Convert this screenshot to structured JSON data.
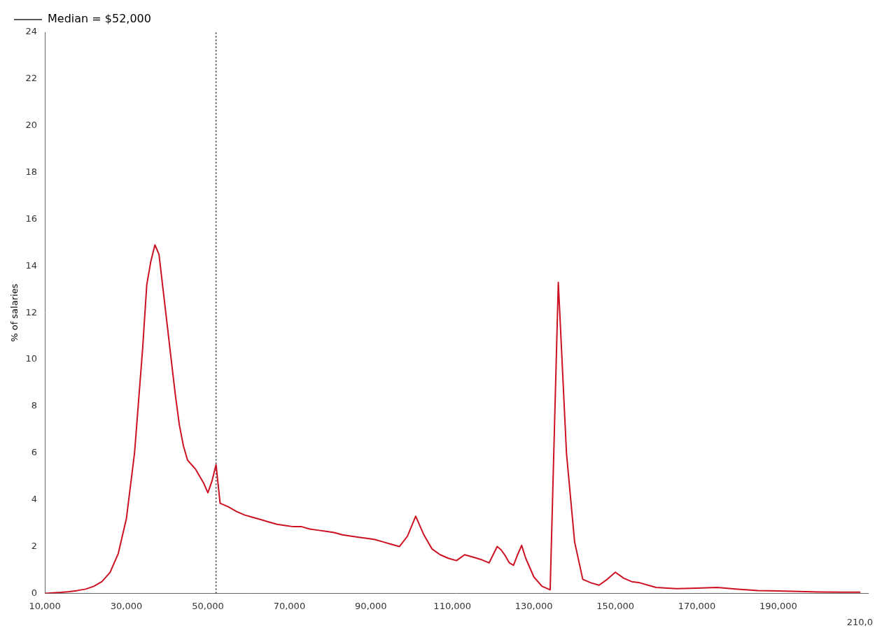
{
  "chart_data": {
    "type": "line",
    "y_label": "% of salaries",
    "color": "#cc1122",
    "x": [
      10000,
      12000,
      14000,
      16000,
      18000,
      20000,
      22000,
      24000,
      26000,
      28000,
      30000,
      32000,
      34000,
      35000,
      36000,
      37000,
      38000,
      39000,
      40000,
      41000,
      42000,
      43000,
      44000,
      45000,
      46000,
      47000,
      48000,
      49000,
      50000,
      51000,
      52000,
      53000,
      55000,
      57000,
      59000,
      61000,
      63000,
      65000,
      67000,
      69000,
      71000,
      73000,
      75000,
      77000,
      79000,
      81000,
      83000,
      85000,
      87000,
      89000,
      91000,
      93000,
      95000,
      97000,
      99000,
      101000,
      103000,
      105000,
      107000,
      109000,
      111000,
      113000,
      115000,
      117000,
      119000,
      121000,
      122000,
      123000,
      124000,
      125000,
      126000,
      127000,
      128000,
      130000,
      132000,
      134000,
      136000,
      138000,
      140000,
      142000,
      144000,
      146000,
      148000,
      150000,
      152000,
      154000,
      156000,
      158000,
      160000,
      165000,
      170000,
      175000,
      180000,
      185000,
      190000,
      195000,
      200000,
      205000,
      210000
    ],
    "values": [
      0.0,
      0.02,
      0.04,
      0.07,
      0.12,
      0.18,
      0.3,
      0.5,
      0.9,
      1.7,
      3.2,
      6.0,
      10.5,
      13.2,
      14.2,
      14.9,
      14.5,
      13.0,
      11.5,
      10.0,
      8.5,
      7.2,
      6.3,
      5.7,
      5.5,
      5.3,
      5.0,
      4.7,
      4.3,
      4.8,
      5.5,
      3.85,
      3.7,
      3.5,
      3.35,
      3.25,
      3.15,
      3.05,
      2.95,
      2.9,
      2.85,
      2.85,
      2.75,
      2.7,
      2.65,
      2.6,
      2.5,
      2.45,
      2.4,
      2.35,
      2.3,
      2.2,
      2.1,
      2.0,
      2.45,
      3.3,
      2.5,
      1.9,
      1.65,
      1.5,
      1.4,
      1.65,
      1.55,
      1.45,
      1.3,
      2.0,
      1.85,
      1.6,
      1.3,
      1.2,
      1.65,
      2.05,
      1.5,
      0.7,
      0.3,
      0.15,
      13.3,
      6.0,
      2.2,
      0.6,
      0.45,
      0.35,
      0.6,
      0.9,
      0.65,
      0.5,
      0.45,
      0.35,
      0.25,
      0.2,
      0.22,
      0.25,
      0.18,
      0.12,
      0.1,
      0.08,
      0.06,
      0.05,
      0.05
    ],
    "median": {
      "value": 52000,
      "label": "Median = $52,000",
      "color": "#222222",
      "line_style": "dotted"
    },
    "annotations": [
      {
        "text": "210,0",
        "x": 210000
      }
    ],
    "xlim": [
      10000,
      212000
    ],
    "xticks": [
      {
        "value": 10000,
        "label": "10,000"
      },
      {
        "value": 30000,
        "label": "30,000"
      },
      {
        "value": 50000,
        "label": "50,000"
      },
      {
        "value": 70000,
        "label": "70,000"
      },
      {
        "value": 90000,
        "label": "90,000"
      },
      {
        "value": 110000,
        "label": "110,000"
      },
      {
        "value": 130000,
        "label": "130,000"
      },
      {
        "value": 150000,
        "label": "150,000"
      },
      {
        "value": 170000,
        "label": "170,000"
      },
      {
        "value": 190000,
        "label": "190,000"
      }
    ],
    "ylim": [
      0,
      24
    ],
    "yticks": [
      0,
      2,
      4,
      6,
      8,
      10,
      12,
      14,
      16,
      18,
      20,
      22,
      24
    ],
    "grid": false,
    "legend": "upper left"
  }
}
